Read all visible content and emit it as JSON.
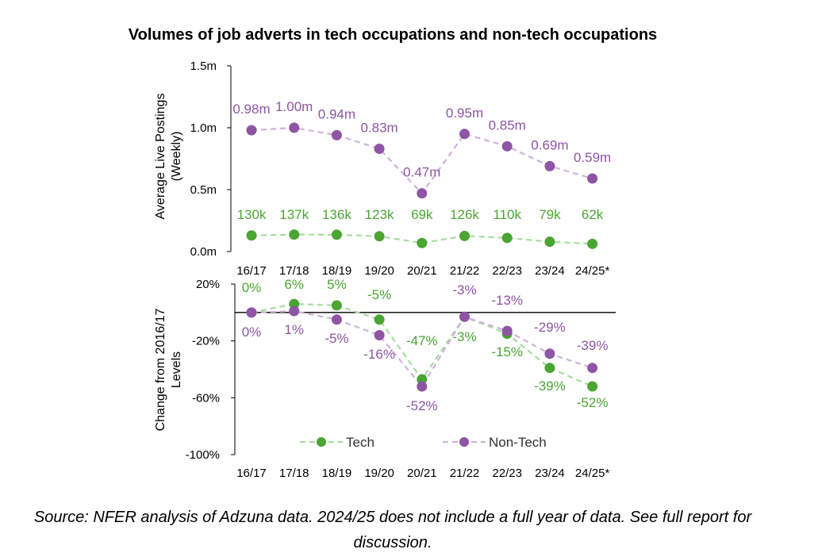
{
  "title": "Volumes of job adverts in tech occupations and non-tech occupations",
  "source": "Source: NFER analysis of Adzuna data. 2024/25 does not include a full year of data. See full report for discussion.",
  "colors": {
    "tech": "#4aa532",
    "non_tech": "#8e55a4",
    "tech_line": "#a8dca0",
    "non_tech_line": "#cfb2db"
  },
  "chart_data": [
    {
      "type": "line",
      "ylabel": "Average Live Postings (Weekly)",
      "xlabel": "",
      "categories": [
        "16/17",
        "17/18",
        "18/19",
        "19/20",
        "20/21",
        "21/22",
        "22/23",
        "23/24",
        "24/25*"
      ],
      "ylim": [
        0,
        1.5
      ],
      "yticks": [
        0,
        0.5,
        1.0,
        1.5
      ],
      "ytick_labels": [
        "0.0m",
        "0.5m",
        "1.0m",
        "1.5m"
      ],
      "grid": false,
      "series": [
        {
          "name": "Tech",
          "values": [
            0.13,
            0.137,
            0.136,
            0.123,
            0.069,
            0.126,
            0.11,
            0.079,
            0.062
          ],
          "labels": [
            "130k",
            "137k",
            "136k",
            "123k",
            "69k",
            "126k",
            "110k",
            "79k",
            "62k"
          ]
        },
        {
          "name": "Non-Tech",
          "values": [
            0.98,
            1.0,
            0.94,
            0.83,
            0.47,
            0.95,
            0.85,
            0.69,
            0.59
          ],
          "labels": [
            "0.98m",
            "1.00m",
            "0.94m",
            "0.83m",
            "0.47m",
            "0.95m",
            "0.85m",
            "0.69m",
            "0.59m"
          ]
        }
      ]
    },
    {
      "type": "line",
      "ylabel": "Change from 2016/17 Levels",
      "xlabel": "",
      "categories": [
        "16/17",
        "17/18",
        "18/19",
        "19/20",
        "20/21",
        "21/22",
        "22/23",
        "23/24",
        "24/25*"
      ],
      "ylim": [
        -100,
        20
      ],
      "yticks": [
        -100,
        -60,
        -20,
        20
      ],
      "ytick_labels": [
        "-100%",
        "-60%",
        "-20%",
        "20%"
      ],
      "zero_line": true,
      "grid": false,
      "legend_position": "bottom",
      "series": [
        {
          "name": "Tech",
          "values": [
            0,
            6,
            5,
            -5,
            -47,
            -3,
            -15,
            -39,
            -52
          ],
          "labels": [
            "0%",
            "6%",
            "5%",
            "-5%",
            "-47%",
            "-3%",
            "-15%",
            "-39%",
            "-52%"
          ]
        },
        {
          "name": "Non-Tech",
          "values": [
            0,
            1,
            -5,
            -16,
            -52,
            -3,
            -13,
            -29,
            -39
          ],
          "labels": [
            "0%",
            "1%",
            "-5%",
            "-16%",
            "-52%",
            "-3%",
            "-13%",
            "-29%",
            "-39%"
          ]
        }
      ]
    }
  ]
}
